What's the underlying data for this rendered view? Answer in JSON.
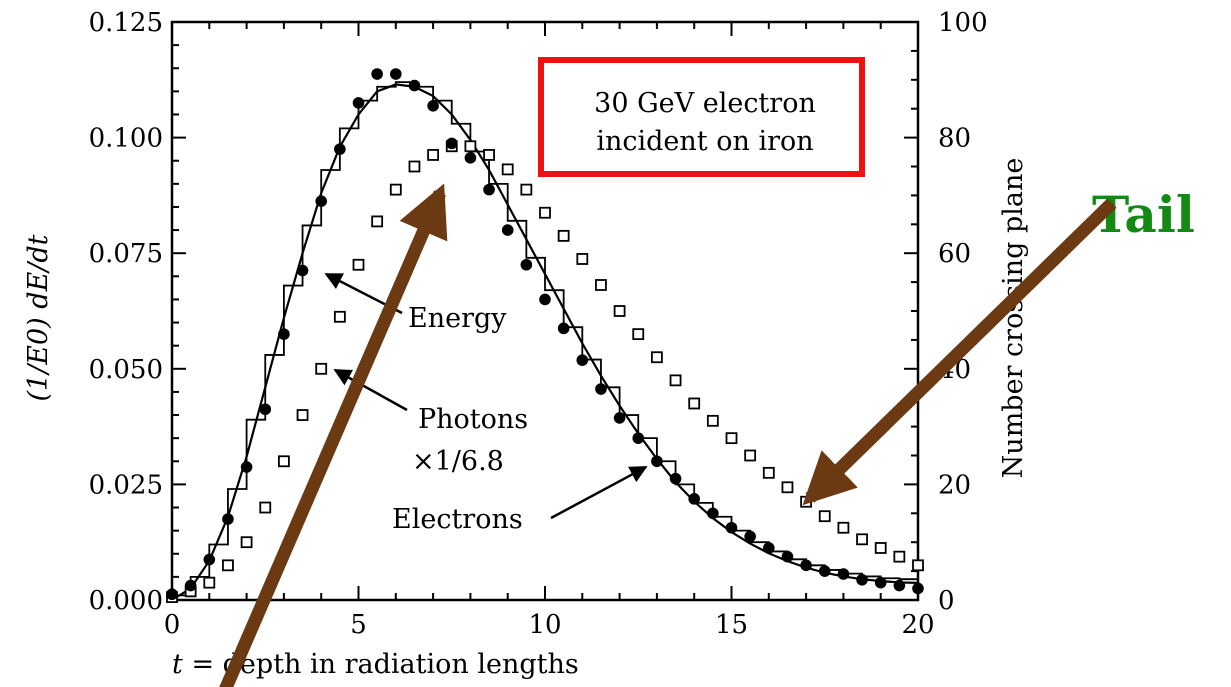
{
  "chart_data": {
    "type": "line",
    "title": "",
    "annotation_box": [
      "30 GeV electron",
      "incident on iron"
    ],
    "xlabel": "t = depth in radiation lengths",
    "xlabel_var": "t",
    "xlabel_rest": " = depth in radiation lengths",
    "ylabel": "(1/E0) dE/dt",
    "ylabel_right": "Number crossing plane",
    "xlim": [
      0,
      20
    ],
    "ylim": [
      0,
      0.125
    ],
    "ylim_right": [
      0,
      100
    ],
    "x_ticks": [
      0,
      5,
      10,
      15,
      20
    ],
    "x_tick_labels": [
      "0",
      "5",
      "10",
      "15",
      "20"
    ],
    "y_ticks": [
      0,
      0.025,
      0.05,
      0.075,
      0.1,
      0.125
    ],
    "y_tick_labels": [
      "0.000",
      "0.025",
      "0.050",
      "0.075",
      "0.100",
      "0.125"
    ],
    "y_right_ticks": [
      0,
      20,
      40,
      60,
      80,
      100
    ],
    "y_right_tick_labels": [
      "0",
      "20",
      "40",
      "60",
      "80",
      "100"
    ],
    "grid": false,
    "series": [
      {
        "name": "Energy",
        "kind": "curve",
        "axis": "left",
        "x": [
          0,
          0.5,
          1,
          1.5,
          2,
          2.5,
          3,
          3.5,
          4,
          4.5,
          5,
          5.5,
          6,
          6.5,
          7,
          7.5,
          8,
          8.5,
          9,
          9.5,
          10,
          10.5,
          11,
          11.5,
          12,
          12.5,
          13,
          13.5,
          14,
          14.5,
          15,
          15.5,
          16,
          16.5,
          17,
          17.5,
          18,
          18.5,
          19,
          19.5,
          20
        ],
        "values": [
          0,
          0.0025,
          0.0085,
          0.018,
          0.031,
          0.046,
          0.061,
          0.075,
          0.088,
          0.098,
          0.105,
          0.11,
          0.1115,
          0.111,
          0.109,
          0.105,
          0.0995,
          0.093,
          0.0855,
          0.078,
          0.0705,
          0.063,
          0.0555,
          0.0485,
          0.042,
          0.036,
          0.0305,
          0.0255,
          0.0213,
          0.0177,
          0.0147,
          0.0122,
          0.0101,
          0.0084,
          0.007,
          0.0059,
          0.0051,
          0.0045,
          0.0041,
          0.0038,
          0.0037
        ]
      },
      {
        "name": "Energy (histogram)",
        "kind": "step",
        "axis": "left",
        "x_edges": [
          0,
          0.5,
          1,
          1.5,
          2,
          2.5,
          3,
          3.5,
          4,
          4.5,
          5,
          5.5,
          6,
          6.5,
          7,
          7.5,
          8,
          8.5,
          9,
          9.5,
          10,
          10.5,
          11,
          11.5,
          12,
          12.5,
          13,
          13.5,
          14,
          14.5,
          15,
          15.5,
          16,
          16.5,
          17,
          17.5,
          18,
          18.5,
          19,
          19.5,
          20
        ],
        "values": [
          0.001,
          0.005,
          0.012,
          0.024,
          0.039,
          0.053,
          0.068,
          0.081,
          0.093,
          0.102,
          0.108,
          0.111,
          0.112,
          0.111,
          0.108,
          0.103,
          0.097,
          0.09,
          0.082,
          0.074,
          0.067,
          0.059,
          0.052,
          0.046,
          0.04,
          0.035,
          0.03,
          0.025,
          0.021,
          0.018,
          0.015,
          0.0125,
          0.0105,
          0.0088,
          0.0075,
          0.0065,
          0.0057,
          0.0051,
          0.0047,
          0.0045
        ]
      },
      {
        "name": "Photons ×1/6.8",
        "kind": "marker-open-square",
        "axis": "right",
        "x": [
          0,
          0.5,
          1,
          1.5,
          2,
          2.5,
          3,
          3.5,
          4,
          4.5,
          5,
          5.5,
          6,
          6.5,
          7,
          7.5,
          8,
          8.5,
          9,
          9.5,
          10,
          10.5,
          11,
          11.5,
          12,
          12.5,
          13,
          13.5,
          14,
          14.5,
          15,
          15.5,
          16,
          16.5,
          17,
          17.5,
          18,
          18.5,
          19,
          19.5,
          20
        ],
        "values": [
          0.5,
          1.5,
          3,
          6,
          10,
          16,
          24,
          32,
          40,
          49,
          58,
          65.5,
          71,
          75,
          77,
          78.5,
          78.5,
          77,
          74.5,
          71,
          67,
          63,
          59,
          54.5,
          50,
          46,
          42,
          38,
          34,
          31,
          28,
          25,
          22,
          19.5,
          17,
          14.5,
          12.5,
          10.5,
          9,
          7.5,
          6
        ]
      },
      {
        "name": "Electrons",
        "kind": "marker-filled-circle",
        "axis": "right",
        "x": [
          0,
          0.5,
          1,
          1.5,
          2,
          2.5,
          3,
          3.5,
          4,
          4.5,
          5,
          5.5,
          6,
          6.5,
          7,
          7.5,
          8,
          8.5,
          9,
          9.5,
          10,
          10.5,
          11,
          11.5,
          12,
          12.5,
          13,
          13.5,
          14,
          14.5,
          15,
          15.5,
          16,
          16.5,
          17,
          17.5,
          18,
          18.5,
          19,
          19.5,
          20
        ],
        "values": [
          1,
          2.5,
          7,
          14,
          23,
          33,
          46,
          57,
          69,
          78,
          86,
          91,
          91,
          89,
          85.5,
          79,
          76.5,
          71,
          64,
          58,
          52,
          47,
          41.5,
          36.5,
          31.5,
          28,
          24,
          21,
          17.5,
          15,
          12.5,
          11,
          9,
          7.5,
          6,
          5,
          4.5,
          3.5,
          3,
          2.5,
          2
        ]
      }
    ],
    "annotations": {
      "energy_label": "Energy",
      "photons_label_1": "Photons",
      "photons_label_2": "×1/6.8",
      "electrons_label": "Electrons",
      "tail_label": "Tail"
    },
    "colors": {
      "box_border": "#ee1111",
      "tail_text": "#138a13",
      "big_arrows": "#6b3a12"
    }
  }
}
